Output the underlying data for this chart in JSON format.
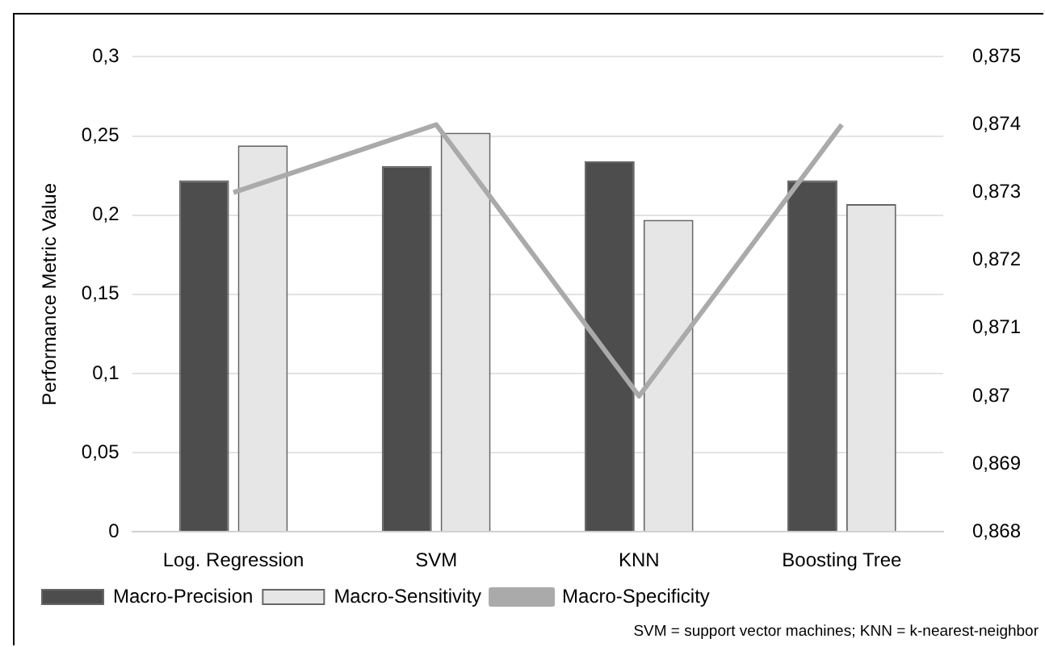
{
  "chart_data": {
    "type": "bar",
    "ylabel": "Performance Metric Value",
    "categories": [
      "Log. Regression",
      "SVM",
      "KNN",
      "Boosting Tree"
    ],
    "series": [
      {
        "name": "Macro-Precision",
        "color": "#4d4d4d",
        "values": [
          0.222,
          0.231,
          0.234,
          0.222
        ]
      },
      {
        "name": "Macro-Sensitivity",
        "color": "#e6e6e6",
        "values": [
          0.244,
          0.252,
          0.197,
          0.207
        ]
      },
      {
        "name": "Macro-Specificity",
        "type": "line",
        "axis": "y2",
        "color": "#aaaaaa",
        "values": [
          0.873,
          0.874,
          0.87,
          0.874
        ]
      }
    ],
    "ylim": [
      0,
      0.3
    ],
    "yticks": [
      0,
      {
        "value": 0.05,
        "label": "0,05"
      },
      {
        "value": 0.1,
        "label": "0,1"
      },
      {
        "value": 0.15,
        "label": "0,15"
      },
      {
        "value": 0.2,
        "label": "0,2"
      },
      {
        "value": 0.25,
        "label": "0,25"
      },
      {
        "value": 0.3,
        "label": "0,3"
      }
    ],
    "y2lim": [
      0.868,
      0.875
    ],
    "y2ticks": [
      {
        "value": 0.868,
        "label": "0,868"
      },
      {
        "value": 0.869,
        "label": "0,869"
      },
      {
        "value": 0.87,
        "label": "0,87"
      },
      {
        "value": 0.871,
        "label": "0,871"
      },
      {
        "value": 0.872,
        "label": "0,872"
      },
      {
        "value": 0.873,
        "label": "0,873"
      },
      {
        "value": 0.874,
        "label": "0,874"
      },
      {
        "value": 0.875,
        "label": "0,875"
      }
    ],
    "grid": "y",
    "legend": "bottom",
    "annotations": [
      "SVM = support vector machines; KNN = k-nearest-neighbor"
    ]
  }
}
